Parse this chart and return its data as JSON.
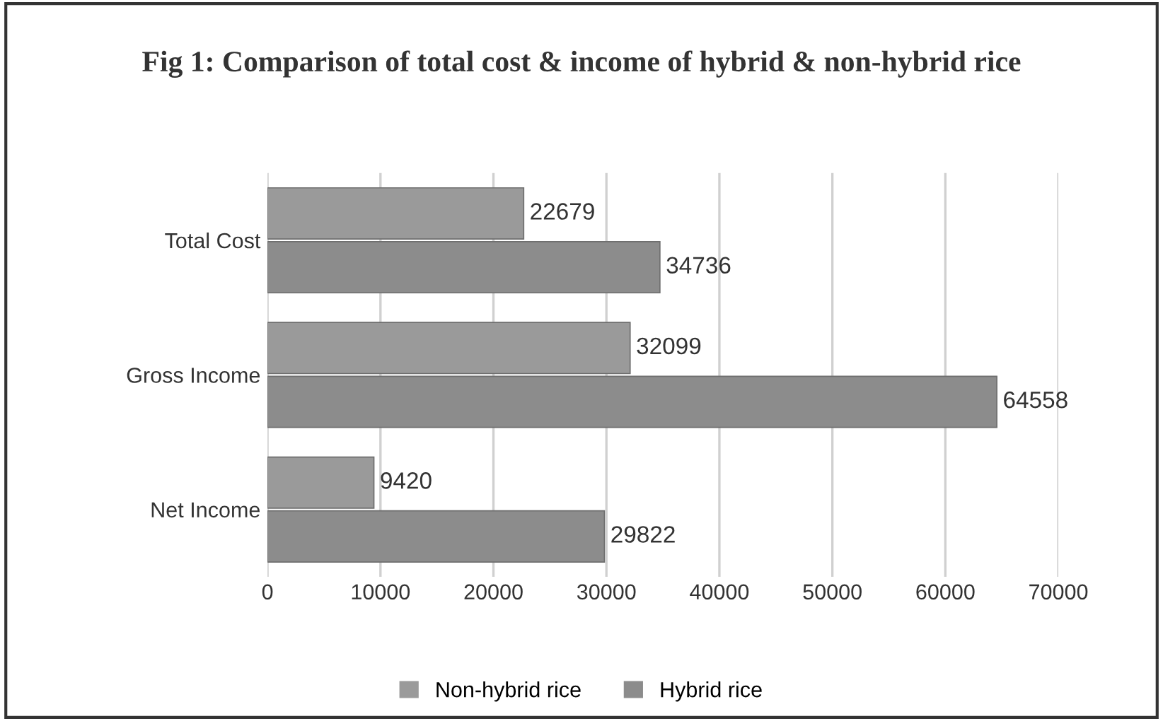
{
  "chart_data": {
    "type": "bar",
    "orientation": "horizontal",
    "title": "Fig 1: Comparison of total cost & income of hybrid & non-hybrid rice",
    "categories": [
      "Total Cost",
      "Gross Income",
      "Net Income"
    ],
    "series": [
      {
        "name": "Non-hybrid rice",
        "color": "#9a9a9a",
        "values": [
          22679,
          32099,
          9420
        ]
      },
      {
        "name": "Hybrid rice",
        "color": "#8c8c8c",
        "values": [
          34736,
          64558,
          29822
        ]
      }
    ],
    "xlim": [
      0,
      70000
    ],
    "xticks": [
      0,
      10000,
      20000,
      30000,
      40000,
      50000,
      60000,
      70000
    ],
    "grid": "x",
    "legend": "bottom",
    "data_labels": true
  }
}
